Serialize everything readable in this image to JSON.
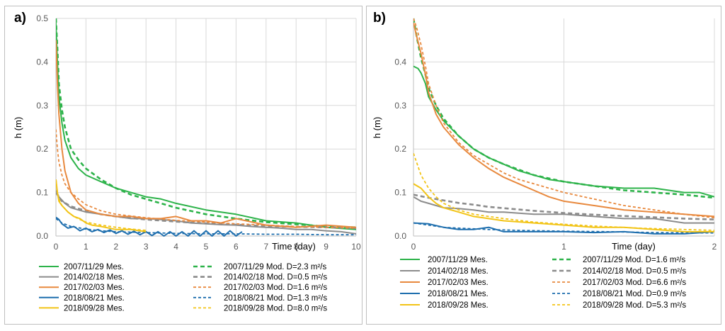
{
  "chart_data": [
    {
      "type": "line",
      "panel_label": "a)",
      "xlabel": "Time (day)",
      "ylabel": "h (m)",
      "xlim": [
        0,
        10
      ],
      "ylim": [
        0,
        0.5
      ],
      "x_ticks": [
        0,
        1,
        2,
        3,
        4,
        5,
        6,
        7,
        8,
        9,
        10
      ],
      "x_tick_labels": [
        "0",
        "1",
        "2",
        "3",
        "4",
        "5",
        "6",
        "7",
        "8",
        "9",
        "10"
      ],
      "y_ticks": [
        0,
        0.1,
        0.2,
        0.3,
        0.4,
        0.5
      ],
      "y_tick_labels": [
        "0.0",
        "0.1",
        "0.2",
        "0.3",
        "0.4",
        "0.5"
      ],
      "grid": true,
      "legend_position": "bottom",
      "series": [
        {
          "name": "2007/11/29 Mes.",
          "color": "#2db34a",
          "dash": "solid",
          "width": 2,
          "x": [
            0,
            0.05,
            0.1,
            0.2,
            0.3,
            0.5,
            0.75,
            1,
            1.5,
            2,
            2.5,
            3,
            3.5,
            4,
            5,
            6,
            7,
            8,
            9,
            10
          ],
          "y": [
            0.49,
            0.4,
            0.32,
            0.26,
            0.22,
            0.18,
            0.155,
            0.14,
            0.125,
            0.11,
            0.1,
            0.09,
            0.085,
            0.075,
            0.06,
            0.05,
            0.035,
            0.03,
            0.02,
            0.015
          ]
        },
        {
          "name": "2007/11/29 Mod. D=2.3 m²/s",
          "color": "#2db34a",
          "dash": "6,4",
          "width": 2.6,
          "x": [
            0,
            0.05,
            0.1,
            0.2,
            0.3,
            0.5,
            0.75,
            1,
            1.5,
            2,
            2.5,
            3,
            4,
            5,
            6,
            7,
            8,
            9,
            10
          ],
          "y": [
            0.5,
            0.43,
            0.35,
            0.29,
            0.25,
            0.2,
            0.175,
            0.155,
            0.13,
            0.11,
            0.095,
            0.085,
            0.065,
            0.05,
            0.04,
            0.032,
            0.027,
            0.022,
            0.02
          ]
        },
        {
          "name": "2014/02/18 Mes.",
          "color": "#8c8c8c",
          "dash": "solid",
          "width": 2,
          "x": [
            0,
            0.1,
            0.3,
            0.5,
            0.75,
            1,
            1.5,
            2,
            2.5,
            3,
            3.5,
            4,
            4.5,
            5,
            5.5,
            6,
            6.5,
            7,
            7.5,
            8,
            8.5,
            9,
            9.5,
            10
          ],
          "y": [
            0.105,
            0.09,
            0.075,
            0.065,
            0.06,
            0.055,
            0.05,
            0.045,
            0.04,
            0.04,
            0.038,
            0.035,
            0.03,
            0.028,
            0.026,
            0.025,
            0.022,
            0.02,
            0.018,
            0.015,
            0.015,
            0.012,
            0.01,
            0.005
          ]
        },
        {
          "name": "2014/02/18 Mod. D=0.5 m²/s",
          "color": "#8c8c8c",
          "dash": "6,4",
          "width": 2.6,
          "x": [
            0,
            0.1,
            0.2,
            0.5,
            1,
            1.5,
            2,
            3,
            4,
            5,
            6,
            7,
            8,
            9,
            10
          ],
          "y": [
            0.1,
            0.09,
            0.08,
            0.068,
            0.058,
            0.05,
            0.045,
            0.038,
            0.033,
            0.029,
            0.026,
            0.023,
            0.021,
            0.02,
            0.018
          ]
        },
        {
          "name": "2017/02/03 Mes.",
          "color": "#e8893e",
          "dash": "solid",
          "width": 2,
          "x": [
            0,
            0.05,
            0.1,
            0.2,
            0.3,
            0.5,
            0.75,
            1,
            1.5,
            2,
            2.5,
            3,
            3.5,
            4,
            4.5,
            5,
            5.5,
            6,
            7,
            8,
            9,
            10
          ],
          "y": [
            0.45,
            0.35,
            0.28,
            0.2,
            0.15,
            0.1,
            0.075,
            0.06,
            0.05,
            0.045,
            0.045,
            0.04,
            0.04,
            0.045,
            0.035,
            0.035,
            0.03,
            0.04,
            0.025,
            0.02,
            0.025,
            0.02
          ]
        },
        {
          "name": "2017/02/03 Mod. D=1.6 m²/s",
          "color": "#e8893e",
          "dash": "4,3",
          "width": 1.8,
          "x": [
            0,
            0.05,
            0.1,
            0.2,
            0.3,
            0.5,
            0.75,
            1,
            1.5,
            2,
            3,
            4,
            5,
            6,
            7,
            8,
            9,
            10
          ],
          "y": [
            0.245,
            0.2,
            0.17,
            0.14,
            0.12,
            0.1,
            0.085,
            0.072,
            0.058,
            0.05,
            0.042,
            0.036,
            0.032,
            0.028,
            0.025,
            0.022,
            0.02,
            0.018
          ]
        },
        {
          "name": "2018/08/21 Mes.",
          "color": "#1f6fae",
          "dash": "solid",
          "width": 2,
          "x": [
            0,
            0.1,
            0.2,
            0.4,
            0.6,
            0.8,
            1,
            1.2,
            1.4,
            1.6,
            1.8,
            2,
            2.2,
            2.4,
            2.6,
            2.8,
            3,
            3.2,
            3.4,
            3.6,
            3.8,
            4,
            4.2,
            4.4,
            4.6,
            4.8,
            5,
            5.2,
            5.4,
            5.6,
            5.8,
            6,
            6.2
          ],
          "y": [
            0.043,
            0.038,
            0.028,
            0.018,
            0.022,
            0.012,
            0.018,
            0.01,
            0.015,
            0.008,
            0.014,
            0.006,
            0.012,
            0.004,
            0.011,
            0.003,
            0.01,
            0.001,
            0.01,
            0.0,
            0.01,
            0.0,
            0.01,
            0.0,
            0.012,
            0.0,
            0.012,
            0.0,
            0.012,
            0.0,
            0.012,
            0.0,
            0.01
          ]
        },
        {
          "name": "2018/08/21 Mod. D=1.3 m²/s",
          "color": "#1f6fae",
          "dash": "4,3",
          "width": 1.8,
          "x": [
            0,
            0.2,
            0.5,
            1,
            1.5,
            2,
            3,
            4,
            5,
            6,
            7,
            8,
            9,
            10
          ],
          "y": [
            0.04,
            0.03,
            0.022,
            0.016,
            0.012,
            0.01,
            0.008,
            0.006,
            0.005,
            0.005,
            0.004,
            0.004,
            0.003,
            0.003
          ]
        },
        {
          "name": "2018/09/28 Mes.",
          "color": "#f2c417",
          "dash": "solid",
          "width": 2,
          "x": [
            0,
            0.05,
            0.1,
            0.2,
            0.4,
            0.6,
            0.8,
            1,
            1.2,
            1.5,
            2,
            2.5,
            3
          ],
          "y": [
            0.13,
            0.1,
            0.08,
            0.07,
            0.055,
            0.045,
            0.04,
            0.03,
            0.025,
            0.022,
            0.015,
            0.015,
            0.01
          ]
        },
        {
          "name": "2018/09/28 Mod. D=8.0 m²/s",
          "color": "#f2c417",
          "dash": "4,3",
          "width": 1.8,
          "x": [
            0,
            0.05,
            0.1,
            0.2,
            0.4,
            0.6,
            0.8,
            1,
            1.5,
            2,
            2.5,
            3
          ],
          "y": [
            0.13,
            0.1,
            0.085,
            0.07,
            0.055,
            0.045,
            0.038,
            0.032,
            0.025,
            0.02,
            0.016,
            0.013
          ]
        }
      ]
    },
    {
      "type": "line",
      "panel_label": "b)",
      "xlabel": "Time (day)",
      "ylabel": "h (m)",
      "xlim": [
        0,
        2
      ],
      "ylim": [
        0,
        0.5
      ],
      "x_ticks": [
        0,
        1,
        2
      ],
      "x_tick_labels": [
        "0",
        "1",
        "2"
      ],
      "y_ticks": [
        0,
        0.1,
        0.2,
        0.3,
        0.4
      ],
      "y_tick_labels": [
        "0.0",
        "0.1",
        "0.2",
        "0.3",
        "0.4"
      ],
      "grid": true,
      "legend_position": "bottom",
      "series": [
        {
          "name": "2007/11/29 Mes.",
          "color": "#2db34a",
          "dash": "solid",
          "width": 2,
          "x": [
            0,
            0.03,
            0.05,
            0.08,
            0.1,
            0.15,
            0.2,
            0.3,
            0.4,
            0.5,
            0.6,
            0.7,
            0.8,
            0.9,
            1.0,
            1.2,
            1.4,
            1.6,
            1.8,
            1.9,
            2.0
          ],
          "y": [
            0.39,
            0.385,
            0.375,
            0.35,
            0.32,
            0.29,
            0.265,
            0.23,
            0.2,
            0.18,
            0.165,
            0.15,
            0.14,
            0.13,
            0.125,
            0.115,
            0.11,
            0.11,
            0.1,
            0.1,
            0.09
          ]
        },
        {
          "name": "2007/11/29 Mod. D=1.6 m²/s",
          "color": "#2db34a",
          "dash": "6,4",
          "width": 2.6,
          "x": [
            0,
            0.02,
            0.05,
            0.08,
            0.1,
            0.15,
            0.2,
            0.3,
            0.4,
            0.5,
            0.6,
            0.8,
            1.0,
            1.2,
            1.4,
            1.6,
            1.8,
            2.0
          ],
          "y": [
            0.5,
            0.46,
            0.41,
            0.37,
            0.34,
            0.3,
            0.27,
            0.23,
            0.2,
            0.18,
            0.165,
            0.14,
            0.125,
            0.115,
            0.105,
            0.1,
            0.095,
            0.088
          ]
        },
        {
          "name": "2014/02/18 Mes.",
          "color": "#8c8c8c",
          "dash": "solid",
          "width": 2,
          "x": [
            0,
            0.05,
            0.1,
            0.15,
            0.2,
            0.3,
            0.4,
            0.5,
            0.6,
            0.8,
            1.0,
            1.2,
            1.4,
            1.6,
            1.8,
            2.0
          ],
          "y": [
            0.09,
            0.08,
            0.075,
            0.07,
            0.065,
            0.063,
            0.06,
            0.055,
            0.055,
            0.05,
            0.05,
            0.045,
            0.04,
            0.04,
            0.03,
            0.03
          ]
        },
        {
          "name": "2014/02/18 Mod. D=0.5 m²/s",
          "color": "#8c8c8c",
          "dash": "6,4",
          "width": 2.6,
          "x": [
            0,
            0.1,
            0.2,
            0.3,
            0.4,
            0.5,
            0.6,
            0.8,
            1.0,
            1.2,
            1.4,
            1.6,
            1.8,
            2.0
          ],
          "y": [
            0.095,
            0.088,
            0.082,
            0.076,
            0.072,
            0.067,
            0.064,
            0.058,
            0.053,
            0.049,
            0.046,
            0.043,
            0.04,
            0.038
          ]
        },
        {
          "name": "2017/02/03 Mes.",
          "color": "#e8893e",
          "dash": "solid",
          "width": 2,
          "x": [
            0,
            0.02,
            0.05,
            0.08,
            0.1,
            0.15,
            0.2,
            0.3,
            0.4,
            0.5,
            0.6,
            0.7,
            0.8,
            0.9,
            1.0,
            1.2,
            1.4,
            1.6,
            1.8,
            2.0
          ],
          "y": [
            0.49,
            0.46,
            0.42,
            0.37,
            0.33,
            0.28,
            0.25,
            0.21,
            0.18,
            0.155,
            0.135,
            0.12,
            0.105,
            0.09,
            0.08,
            0.07,
            0.06,
            0.055,
            0.05,
            0.045
          ]
        },
        {
          "name": "2017/02/03 Mod. D=6.6 m²/s",
          "color": "#e8893e",
          "dash": "4,3",
          "width": 1.8,
          "x": [
            0,
            0.02,
            0.05,
            0.08,
            0.1,
            0.15,
            0.2,
            0.3,
            0.4,
            0.5,
            0.6,
            0.7,
            0.8,
            1.0,
            1.2,
            1.4,
            1.6,
            1.8,
            2.0
          ],
          "y": [
            0.5,
            0.48,
            0.44,
            0.39,
            0.35,
            0.3,
            0.26,
            0.215,
            0.185,
            0.165,
            0.145,
            0.13,
            0.12,
            0.1,
            0.085,
            0.07,
            0.06,
            0.05,
            0.042
          ]
        },
        {
          "name": "2018/08/21 Mes.",
          "color": "#1f6fae",
          "dash": "solid",
          "width": 2,
          "x": [
            0,
            0.1,
            0.2,
            0.3,
            0.4,
            0.5,
            0.6,
            0.8,
            1.0,
            1.2,
            1.4,
            1.6,
            1.8,
            2.0
          ],
          "y": [
            0.03,
            0.028,
            0.02,
            0.015,
            0.015,
            0.02,
            0.01,
            0.01,
            0.01,
            0.008,
            0.01,
            0.005,
            0.005,
            0.01
          ]
        },
        {
          "name": "2018/08/21 Mod. D=0.9 m²/s",
          "color": "#1f6fae",
          "dash": "4,3",
          "width": 1.8,
          "x": [
            0,
            0.1,
            0.2,
            0.3,
            0.5,
            0.7,
            1.0,
            1.3,
            1.6,
            2.0
          ],
          "y": [
            0.03,
            0.025,
            0.02,
            0.018,
            0.015,
            0.013,
            0.011,
            0.01,
            0.008,
            0.007
          ]
        },
        {
          "name": "2018/09/28 Mes.",
          "color": "#f2c417",
          "dash": "solid",
          "width": 2,
          "x": [
            0,
            0.05,
            0.1,
            0.15,
            0.2,
            0.3,
            0.4,
            0.5,
            0.6,
            0.8,
            1.0,
            1.2,
            1.4,
            1.6,
            1.8,
            2.0
          ],
          "y": [
            0.12,
            0.11,
            0.09,
            0.075,
            0.065,
            0.055,
            0.045,
            0.04,
            0.035,
            0.03,
            0.025,
            0.02,
            0.02,
            0.015,
            0.01,
            0.01
          ]
        },
        {
          "name": "2018/09/28 Mod. D=5.3 m²/s",
          "color": "#f2c417",
          "dash": "4,3",
          "width": 1.8,
          "x": [
            0,
            0.02,
            0.05,
            0.1,
            0.15,
            0.2,
            0.3,
            0.4,
            0.5,
            0.6,
            0.8,
            1.0,
            1.2,
            1.5,
            2.0
          ],
          "y": [
            0.19,
            0.17,
            0.14,
            0.11,
            0.09,
            0.075,
            0.06,
            0.05,
            0.045,
            0.04,
            0.032,
            0.027,
            0.023,
            0.018,
            0.013
          ]
        }
      ]
    }
  ]
}
